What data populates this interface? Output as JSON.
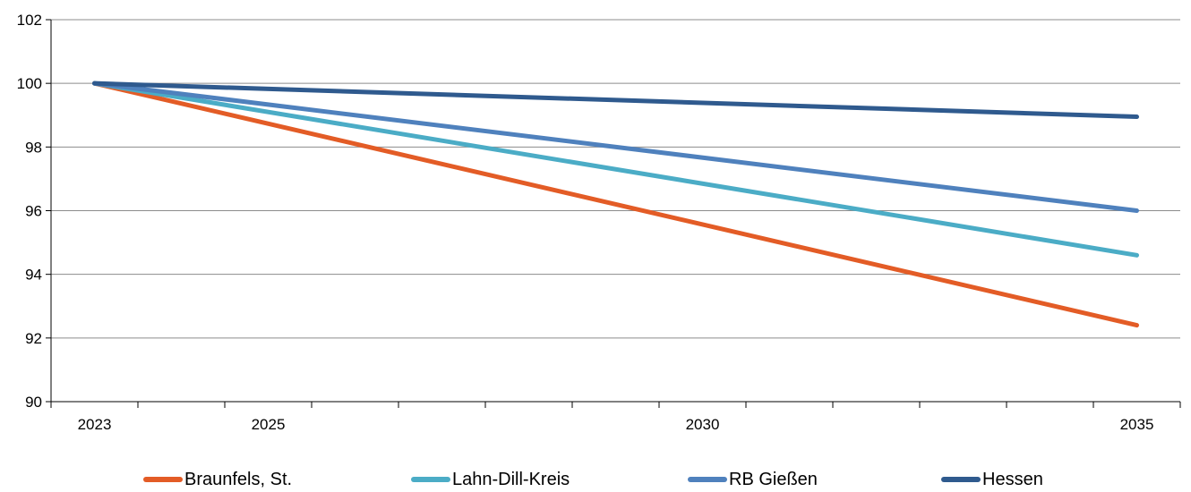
{
  "chart_data": {
    "type": "line",
    "title": "",
    "xlabel": "",
    "ylabel": "",
    "x": [
      2023,
      2035
    ],
    "x_tick_labels": [
      "2023",
      "2025",
      "2030",
      "2035"
    ],
    "y_tick_labels": [
      "90",
      "92",
      "94",
      "96",
      "98",
      "100",
      "102"
    ],
    "ylim": [
      90,
      102
    ],
    "xlim": [
      2022.5,
      2035.5
    ],
    "grid": "horizontal",
    "legend_position": "bottom",
    "series": [
      {
        "name": "Braunfels, St.",
        "color": "#e35c26",
        "values": [
          100,
          92.4
        ]
      },
      {
        "name": "Lahn-Dill-Kreis",
        "color": "#4bacc6",
        "values": [
          100,
          94.6
        ]
      },
      {
        "name": "RB Gießen",
        "color": "#4f81bd",
        "values": [
          100,
          96.0
        ]
      },
      {
        "name": "Hessen",
        "color": "#2f5a8e",
        "values": [
          100,
          98.95
        ]
      }
    ]
  }
}
